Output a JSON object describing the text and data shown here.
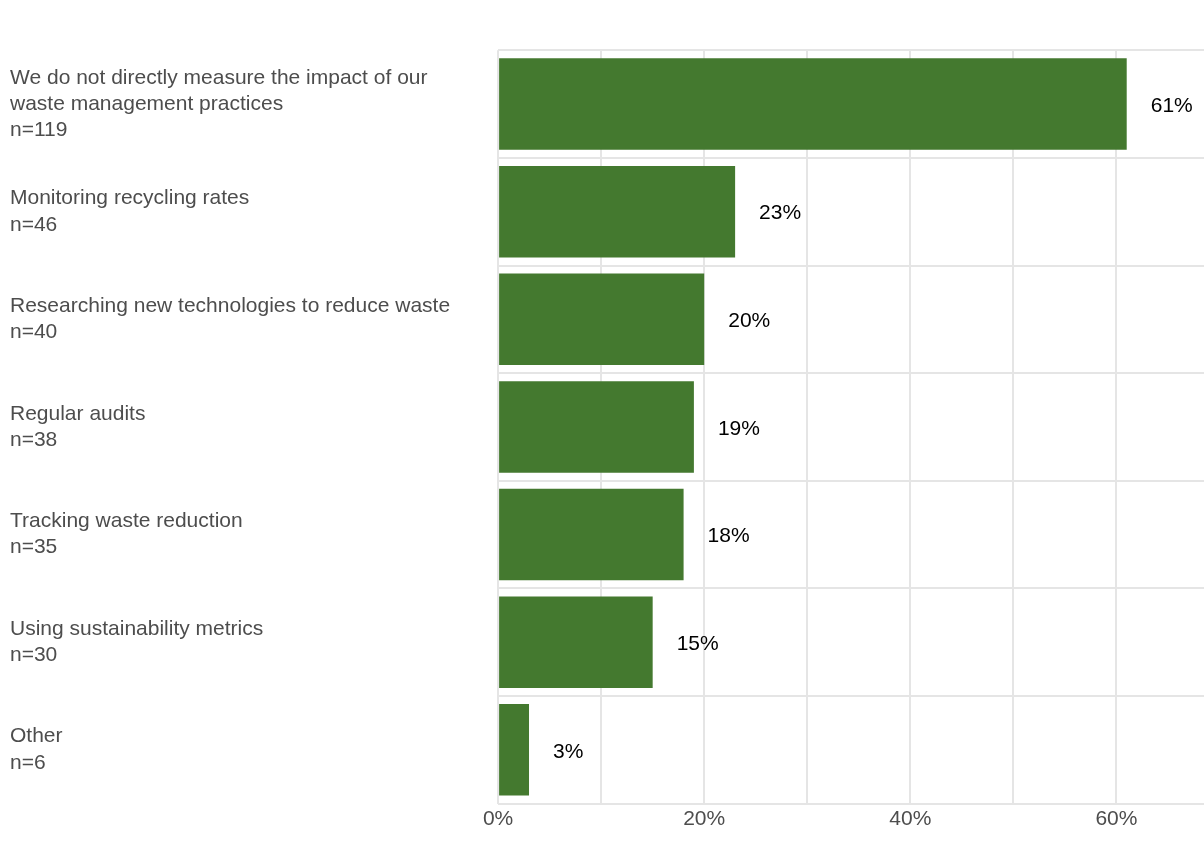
{
  "chart_data": {
    "type": "bar",
    "orientation": "horizontal",
    "categories": [
      "We do not directly measure the impact of our\nwaste management practices\nn=119",
      "Monitoring recycling rates\nn=46",
      "Researching new technologies to reduce waste\nn=40",
      "Regular audits\nn=38",
      "Tracking waste reduction\nn=35",
      "Using sustainability metrics\nn=30",
      "Other\nn=6"
    ],
    "values": [
      61,
      23,
      20,
      19,
      18,
      15,
      3
    ],
    "value_labels": [
      "61%",
      "23%",
      "20%",
      "19%",
      "18%",
      "15%",
      "3%"
    ],
    "color": "#44792f",
    "xlim": [
      0,
      68.5
    ],
    "xticks": [
      {
        "value": 0,
        "label": "0%"
      },
      {
        "value": 10,
        "label": null
      },
      {
        "value": 20,
        "label": "20%"
      },
      {
        "value": 30,
        "label": null
      },
      {
        "value": 40,
        "label": "40%"
      },
      {
        "value": 50,
        "label": null
      },
      {
        "value": 60,
        "label": "60%"
      }
    ],
    "grid": true,
    "legend": false
  }
}
